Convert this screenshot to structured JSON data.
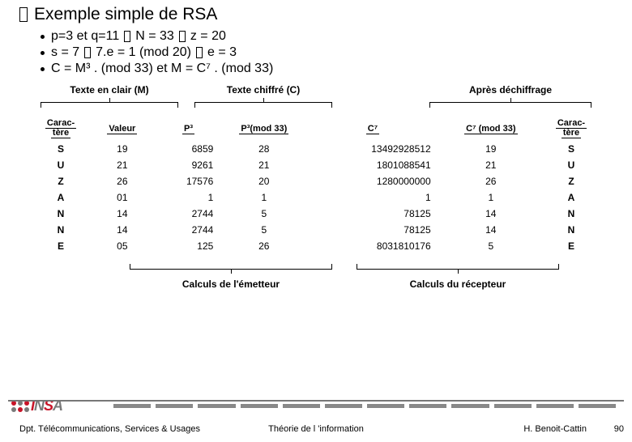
{
  "title": "Exemple simple de RSA",
  "bullets": {
    "l1a": "p=3 et q=11",
    "l1b": "N = 33",
    "l1c": "z = 20",
    "l2a": "s = 7",
    "l2b": "7.e = 1 (mod 20)",
    "l2c": "e = 3",
    "l3": "C = M³ . (mod 33)   et   M = C⁷ . (mod 33)"
  },
  "sections": {
    "plain": "Texte en clair (M)",
    "cipher": "Texte chiffré (C)",
    "decrypt": "Après déchiffrage"
  },
  "headers": {
    "char1_a": "Carac-",
    "char1_b": "tère",
    "val": "Valeur",
    "p3": "P³",
    "p3mod": "P³(mod 33)",
    "c7": "C⁷",
    "c7mod": "C⁷ (mod 33)",
    "char2_a": "Carac-",
    "char2_b": "tère"
  },
  "rows": [
    {
      "ch": "S",
      "v": "19",
      "p3": "6859",
      "p3m": "28",
      "c7": "13492928512",
      "c7m": "19",
      "ch2": "S"
    },
    {
      "ch": "U",
      "v": "21",
      "p3": "9261",
      "p3m": "21",
      "c7": "1801088541",
      "c7m": "21",
      "ch2": "U"
    },
    {
      "ch": "Z",
      "v": "26",
      "p3": "17576",
      "p3m": "20",
      "c7": "1280000000",
      "c7m": "26",
      "ch2": "Z"
    },
    {
      "ch": "A",
      "v": "01",
      "p3": "1",
      "p3m": "1",
      "c7": "1",
      "c7m": "1",
      "ch2": "A"
    },
    {
      "ch": "N",
      "v": "14",
      "p3": "2744",
      "p3m": "5",
      "c7": "78125",
      "c7m": "14",
      "ch2": "N"
    },
    {
      "ch": "N",
      "v": "14",
      "p3": "2744",
      "p3m": "5",
      "c7": "78125",
      "c7m": "14",
      "ch2": "N"
    },
    {
      "ch": "E",
      "v": "05",
      "p3": "125",
      "p3m": "26",
      "c7": "8031810176",
      "c7m": "5",
      "ch2": "E"
    }
  ],
  "bottom": {
    "sender": "Calculs de l'émetteur",
    "receiver": "Calculs du récepteur"
  },
  "footer": {
    "left": "Dpt. Télécommunications, Services & Usages",
    "mid": "Théorie de l 'information",
    "right": "H. Benoit-Cattin",
    "page": "90"
  },
  "logo_dots": [
    "#c81428",
    "#7a7a7a",
    "#c81428",
    "#7a7a7a",
    "#c81428",
    "#7a7a7a"
  ]
}
